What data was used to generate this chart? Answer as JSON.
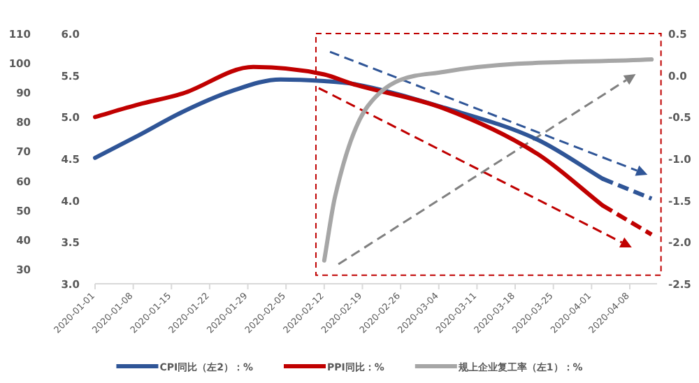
{
  "chart_data": {
    "type": "line",
    "xlim": [
      "2020-01-01",
      "2020-04-13"
    ],
    "xticks": [
      "2020-01-01",
      "2020-01-08",
      "2020-01-15",
      "2020-01-22",
      "2020-01-29",
      "2020-02-05",
      "2020-02-12",
      "2020-02-19",
      "2020-02-26",
      "2020-03-04",
      "2020-03-11",
      "2020-03-18",
      "2020-03-25",
      "2020-04-01",
      "2020-04-08"
    ],
    "ylim": [
      3,
      6
    ],
    "yticks": [
      {
        "value": 3,
        "label": "3.0"
      },
      {
        "value": 3.5,
        "label": "3.5"
      },
      {
        "value": 4,
        "label": "4.0"
      },
      {
        "value": 4.5,
        "label": "4.5"
      },
      {
        "value": 5,
        "label": "5.0"
      },
      {
        "value": 5.5,
        "label": "5.5"
      },
      {
        "value": 6,
        "label": "6.0"
      }
    ],
    "y2lim": [
      -2.5,
      0.5
    ],
    "y2ticks": [
      {
        "value": -2.5,
        "label": "-2.5"
      },
      {
        "value": -2,
        "label": "-2.0"
      },
      {
        "value": -1.5,
        "label": "-1.5"
      },
      {
        "value": -1,
        "label": "-1.0"
      },
      {
        "value": -0.5,
        "label": "-0.5"
      },
      {
        "value": 0,
        "label": "0.0"
      },
      {
        "value": 0.5,
        "label": "0.5"
      }
    ],
    "y3lim": [
      25,
      110
    ],
    "y3ticks": [
      30,
      40,
      50,
      60,
      70,
      80,
      90,
      100,
      110
    ],
    "legend": "bottom",
    "grid": false,
    "series": [
      {
        "name": "CPI同比（左2）：%",
        "color": "#2f5597",
        "axis": "y",
        "x": [
          "2020-01-01",
          "2020-01-09",
          "2020-01-17",
          "2020-01-26",
          "2020-02-04",
          "2020-02-12",
          "2020-02-17",
          "2020-03-05",
          "2020-03-22",
          "2020-04-03"
        ],
        "values": [
          4.51,
          4.78,
          5.06,
          5.31,
          5.45,
          5.43,
          5.4,
          5.11,
          4.73,
          4.26
        ]
      },
      {
        "name": "PPI同比：%",
        "color": "#c00000",
        "axis": "y2",
        "x": [
          "2020-01-01",
          "2020-01-09",
          "2020-01-17",
          "2020-01-30",
          "2020-02-12",
          "2020-02-17",
          "2020-03-05",
          "2020-03-22",
          "2020-04-03"
        ],
        "values": [
          -0.5,
          -0.35,
          -0.22,
          0.1,
          0.01,
          -0.1,
          -0.4,
          -0.94,
          -1.56
        ]
      },
      {
        "name": "规上企业复工率（左1）：%",
        "color": "#a6a6a6",
        "axis": "y3",
        "x": [
          "2020-02-12",
          "2020-02-14",
          "2020-02-20",
          "2020-03-05",
          "2020-04-12"
        ],
        "values": [
          32.9,
          54.7,
          85.4,
          97,
          101.2
        ]
      },
      {
        "color": "#2f5597",
        "axis": "y",
        "line_style": "dashed",
        "x": [
          "2020-04-03",
          "2020-04-12"
        ],
        "values": [
          4.26,
          4.02
        ]
      },
      {
        "color": "#c00000",
        "axis": "y2",
        "line_style": "dashed",
        "x": [
          "2020-04-03",
          "2020-04-12"
        ],
        "values": [
          -1.56,
          -1.91
        ]
      }
    ]
  }
}
